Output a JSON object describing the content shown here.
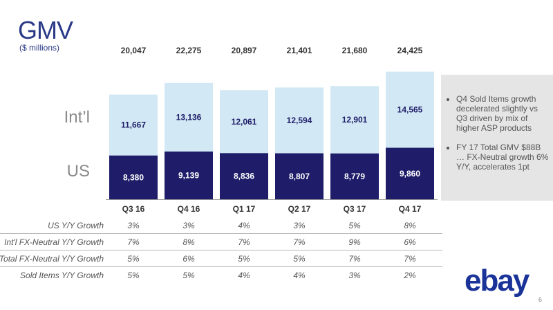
{
  "slide": {
    "title": "GMV",
    "subtitle": "($ millions)",
    "page_number": "6",
    "logo_text": "ebay"
  },
  "labels": {
    "intl": "Int’l",
    "us": "US"
  },
  "colors": {
    "us": "#1f1d69",
    "intl": "#d2e8f4",
    "accent": "#2b3a86"
  },
  "chart_data": {
    "type": "bar",
    "stacked": true,
    "title": "GMV",
    "ylabel": "$ millions",
    "categories": [
      "Q3 16",
      "Q4 16",
      "Q1 17",
      "Q2 17",
      "Q3 17",
      "Q4 17"
    ],
    "series": [
      {
        "name": "US",
        "values": [
          8380,
          9139,
          8836,
          8807,
          8779,
          9860
        ],
        "labels": [
          "8,380",
          "9,139",
          "8,836",
          "8,807",
          "8,779",
          "9,860"
        ]
      },
      {
        "name": "Int’l",
        "values": [
          11667,
          13136,
          12061,
          12594,
          12901,
          14565
        ],
        "labels": [
          "11,667",
          "13,136",
          "12,061",
          "12,594",
          "12,901",
          "14,565"
        ]
      }
    ],
    "totals": [
      "20,047",
      "22,275",
      "20,897",
      "21,401",
      "21,680",
      "24,425"
    ]
  },
  "metrics": [
    {
      "label": "US Y/Y Growth",
      "values": [
        "3%",
        "3%",
        "4%",
        "3%",
        "5%",
        "8%"
      ]
    },
    {
      "label": "Int'l FX-Neutral Y/Y Growth",
      "values": [
        "7%",
        "8%",
        "7%",
        "7%",
        "9%",
        "6%"
      ]
    },
    {
      "label": "Total FX-Neutral Y/Y Growth",
      "values": [
        "5%",
        "6%",
        "5%",
        "5%",
        "7%",
        "7%"
      ]
    },
    {
      "label": "Sold Items Y/Y Growth",
      "values": [
        "5%",
        "5%",
        "4%",
        "4%",
        "3%",
        "2%"
      ]
    }
  ],
  "notes": [
    "Q4 Sold Items growth decelerated slightly vs Q3 driven by mix of higher ASP products",
    "FY 17 Total GMV $88B … FX-Neutral growth 6% Y/Y, accelerates 1pt"
  ]
}
